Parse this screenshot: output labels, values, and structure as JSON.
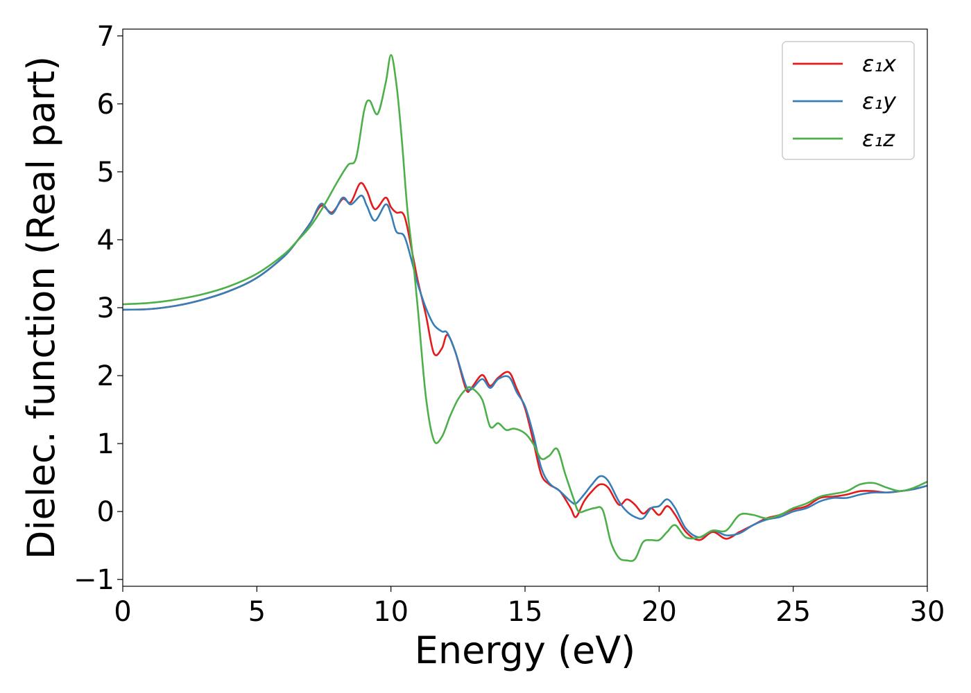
{
  "chart_data": {
    "type": "line",
    "title": "",
    "xlabel": "Energy (eV)",
    "ylabel": "Dielec. function (Real part)",
    "xlim": [
      0,
      30
    ],
    "ylim": [
      -1.1,
      7.1
    ],
    "xticks": [
      0,
      5,
      10,
      15,
      20,
      25,
      30
    ],
    "yticks": [
      -1,
      0,
      1,
      2,
      3,
      4,
      5,
      6,
      7
    ],
    "xtick_labels": [
      "0",
      "5",
      "10",
      "15",
      "20",
      "25",
      "30"
    ],
    "ytick_labels": [
      "−1",
      "0",
      "1",
      "2",
      "3",
      "4",
      "5",
      "6",
      "7"
    ],
    "grid": false,
    "legend_position": "top-right",
    "series": [
      {
        "name": "ε₁x",
        "color": "#e41a1c",
        "x": [
          0,
          1,
          2,
          3,
          4,
          5,
          6,
          6.5,
          7,
          7.4,
          7.8,
          8.2,
          8.5,
          8.85,
          9.1,
          9.4,
          9.8,
          10.0,
          10.2,
          10.5,
          10.8,
          11.0,
          11.3,
          11.6,
          11.9,
          12.1,
          12.4,
          12.8,
          13.0,
          13.4,
          13.7,
          14.0,
          14.4,
          14.7,
          15.0,
          15.3,
          15.6,
          15.9,
          16.3,
          16.7,
          16.9,
          17.2,
          17.5,
          17.8,
          18.1,
          18.5,
          18.8,
          19.1,
          19.4,
          19.7,
          20.0,
          20.3,
          20.6,
          21.0,
          21.5,
          22.0,
          22.5,
          23.0,
          23.5,
          24.0,
          24.5,
          25.0,
          25.5,
          26.0,
          26.5,
          27.0,
          27.5,
          28.0,
          28.5,
          29.0,
          29.5,
          30.0
        ],
        "y": [
          2.97,
          2.98,
          3.03,
          3.12,
          3.25,
          3.44,
          3.75,
          3.98,
          4.25,
          4.5,
          4.4,
          4.6,
          4.55,
          4.83,
          4.72,
          4.45,
          4.62,
          4.48,
          4.4,
          4.35,
          3.8,
          3.4,
          2.9,
          2.33,
          2.4,
          2.6,
          2.35,
          1.8,
          1.82,
          2.01,
          1.85,
          1.97,
          2.05,
          1.8,
          1.52,
          1.05,
          0.55,
          0.4,
          0.3,
          0.05,
          -0.08,
          0.15,
          0.3,
          0.4,
          0.35,
          0.1,
          0.18,
          0.1,
          -0.03,
          0.05,
          -0.05,
          0.08,
          -0.05,
          -0.3,
          -0.42,
          -0.3,
          -0.4,
          -0.3,
          -0.2,
          -0.1,
          -0.05,
          0.03,
          0.08,
          0.2,
          0.22,
          0.25,
          0.3,
          0.3,
          0.28,
          0.3,
          0.33,
          0.38
        ]
      },
      {
        "name": "ε₁y",
        "color": "#377eb8",
        "x": [
          0,
          1,
          2,
          3,
          4,
          5,
          6,
          6.5,
          7,
          7.4,
          7.8,
          8.2,
          8.5,
          8.9,
          9.1,
          9.4,
          9.8,
          10.0,
          10.2,
          10.5,
          10.8,
          11.0,
          11.3,
          11.6,
          11.9,
          12.1,
          12.4,
          12.8,
          13.0,
          13.4,
          13.7,
          14.0,
          14.4,
          14.7,
          15.0,
          15.3,
          15.6,
          15.9,
          16.3,
          16.7,
          16.9,
          17.2,
          17.5,
          17.8,
          18.1,
          18.5,
          18.8,
          19.1,
          19.4,
          19.7,
          20.0,
          20.3,
          20.6,
          21.0,
          21.5,
          22.0,
          22.5,
          23.0,
          23.5,
          24.0,
          24.5,
          25.0,
          25.5,
          26.0,
          26.5,
          27.0,
          27.5,
          28.0,
          28.5,
          29.0,
          29.5,
          30.0
        ],
        "y": [
          2.97,
          2.98,
          3.03,
          3.12,
          3.25,
          3.44,
          3.75,
          3.98,
          4.25,
          4.53,
          4.38,
          4.62,
          4.52,
          4.65,
          4.5,
          4.28,
          4.52,
          4.38,
          4.12,
          4.05,
          3.65,
          3.35,
          3.0,
          2.75,
          2.65,
          2.63,
          2.35,
          1.85,
          1.8,
          1.95,
          1.82,
          1.95,
          1.98,
          1.75,
          1.55,
          1.15,
          0.65,
          0.42,
          0.3,
          0.15,
          0.12,
          0.25,
          0.4,
          0.52,
          0.45,
          0.15,
          0.0,
          -0.08,
          -0.1,
          0.05,
          0.08,
          0.18,
          0.05,
          -0.25,
          -0.38,
          -0.28,
          -0.35,
          -0.32,
          -0.2,
          -0.12,
          -0.08,
          0.0,
          0.05,
          0.15,
          0.2,
          0.2,
          0.25,
          0.28,
          0.28,
          0.3,
          0.33,
          0.38
        ]
      },
      {
        "name": "ε₁z",
        "color": "#4daf4a",
        "x": [
          0,
          1,
          2,
          3,
          4,
          5,
          6,
          6.5,
          7,
          7.5,
          8.0,
          8.4,
          8.7,
          9.0,
          9.2,
          9.5,
          9.8,
          10.0,
          10.2,
          10.4,
          10.6,
          10.8,
          11.0,
          11.3,
          11.6,
          11.9,
          12.2,
          12.5,
          12.8,
          13.0,
          13.4,
          13.7,
          14.0,
          14.3,
          14.6,
          15.0,
          15.3,
          15.6,
          15.9,
          16.2,
          16.5,
          16.8,
          17.0,
          17.3,
          17.6,
          17.9,
          18.2,
          18.5,
          18.8,
          19.1,
          19.4,
          19.7,
          20.0,
          20.3,
          20.6,
          21.0,
          21.5,
          22.0,
          22.5,
          23.0,
          23.5,
          24.0,
          24.5,
          25.0,
          25.5,
          26.0,
          26.5,
          27.0,
          27.5,
          28.0,
          28.5,
          29.0,
          29.5,
          30.0
        ],
        "y": [
          3.05,
          3.07,
          3.12,
          3.2,
          3.32,
          3.5,
          3.78,
          3.98,
          4.2,
          4.5,
          4.85,
          5.1,
          5.2,
          5.9,
          6.05,
          5.85,
          6.3,
          6.72,
          6.3,
          5.5,
          4.5,
          3.8,
          3.0,
          1.7,
          1.05,
          1.1,
          1.4,
          1.65,
          1.8,
          1.82,
          1.65,
          1.25,
          1.3,
          1.2,
          1.22,
          1.15,
          1.0,
          0.78,
          0.82,
          0.92,
          0.55,
          0.2,
          0.0,
          0.02,
          0.05,
          0.02,
          -0.45,
          -0.68,
          -0.72,
          -0.7,
          -0.45,
          -0.42,
          -0.42,
          -0.3,
          -0.2,
          -0.38,
          -0.38,
          -0.28,
          -0.28,
          -0.05,
          -0.05,
          -0.1,
          -0.05,
          0.05,
          0.12,
          0.22,
          0.26,
          0.3,
          0.4,
          0.42,
          0.35,
          0.3,
          0.35,
          0.44
        ]
      }
    ]
  }
}
